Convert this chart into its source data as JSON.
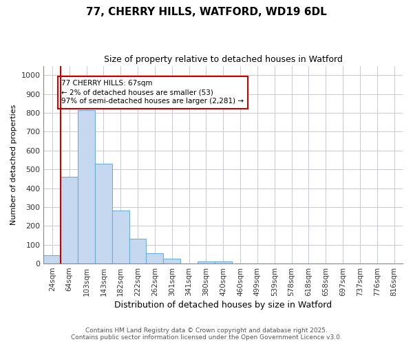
{
  "title1": "77, CHERRY HILLS, WATFORD, WD19 6DL",
  "title2": "Size of property relative to detached houses in Watford",
  "xlabel": "Distribution of detached houses by size in Watford",
  "ylabel": "Number of detached properties",
  "categories": [
    "24sqm",
    "64sqm",
    "103sqm",
    "143sqm",
    "182sqm",
    "222sqm",
    "262sqm",
    "301sqm",
    "341sqm",
    "380sqm",
    "420sqm",
    "460sqm",
    "499sqm",
    "539sqm",
    "578sqm",
    "618sqm",
    "658sqm",
    "697sqm",
    "737sqm",
    "776sqm",
    "816sqm"
  ],
  "values": [
    45,
    460,
    815,
    530,
    280,
    130,
    55,
    25,
    0,
    10,
    12,
    0,
    0,
    0,
    0,
    0,
    0,
    0,
    0,
    0,
    0
  ],
  "bar_color": "#c5d8f0",
  "bar_edge_color": "#6baed6",
  "vline_color": "#cc0000",
  "annotation_text": "77 CHERRY HILLS: 67sqm\n← 2% of detached houses are smaller (53)\n97% of semi-detached houses are larger (2,281) →",
  "annotation_box_color": "#ffffff",
  "annotation_box_edge": "#cc0000",
  "ylim": [
    0,
    1050
  ],
  "yticks": [
    0,
    100,
    200,
    300,
    400,
    500,
    600,
    700,
    800,
    900,
    1000
  ],
  "footer1": "Contains HM Land Registry data © Crown copyright and database right 2025.",
  "footer2": "Contains public sector information licensed under the Open Government Licence v3.0.",
  "background_color": "#ffffff",
  "grid_color": "#c8c8d8"
}
